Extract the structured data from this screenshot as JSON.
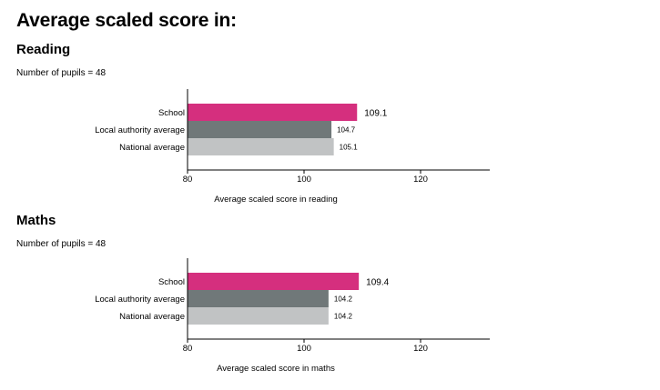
{
  "title": "Average scaled score in:",
  "chart_data": [
    {
      "type": "bar",
      "orientation": "horizontal",
      "title": "Reading",
      "subtitle": "Number of pupils = 48",
      "xlabel": "Average scaled score in reading",
      "xlim": [
        80,
        130
      ],
      "xticks": [
        "80",
        "100",
        "120"
      ],
      "grid": false,
      "categories": [
        "School",
        "Local authority average",
        "National average"
      ],
      "values": [
        109.1,
        104.7,
        105.1
      ],
      "value_labels": [
        "109.1",
        "104.7",
        "105.1"
      ],
      "colors": [
        "#d52f7e",
        "#707879",
        "#c1c3c4"
      ]
    },
    {
      "type": "bar",
      "orientation": "horizontal",
      "title": "Maths",
      "subtitle": "Number of pupils = 48",
      "xlabel": "Average scaled score in maths",
      "xlim": [
        80,
        130
      ],
      "xticks": [
        "80",
        "100",
        "120"
      ],
      "grid": false,
      "categories": [
        "School",
        "Local authority average",
        "National average"
      ],
      "values": [
        109.4,
        104.2,
        104.2
      ],
      "value_labels": [
        "109.4",
        "104.2",
        "104.2"
      ],
      "colors": [
        "#d52f7e",
        "#707879",
        "#c1c3c4"
      ]
    }
  ]
}
